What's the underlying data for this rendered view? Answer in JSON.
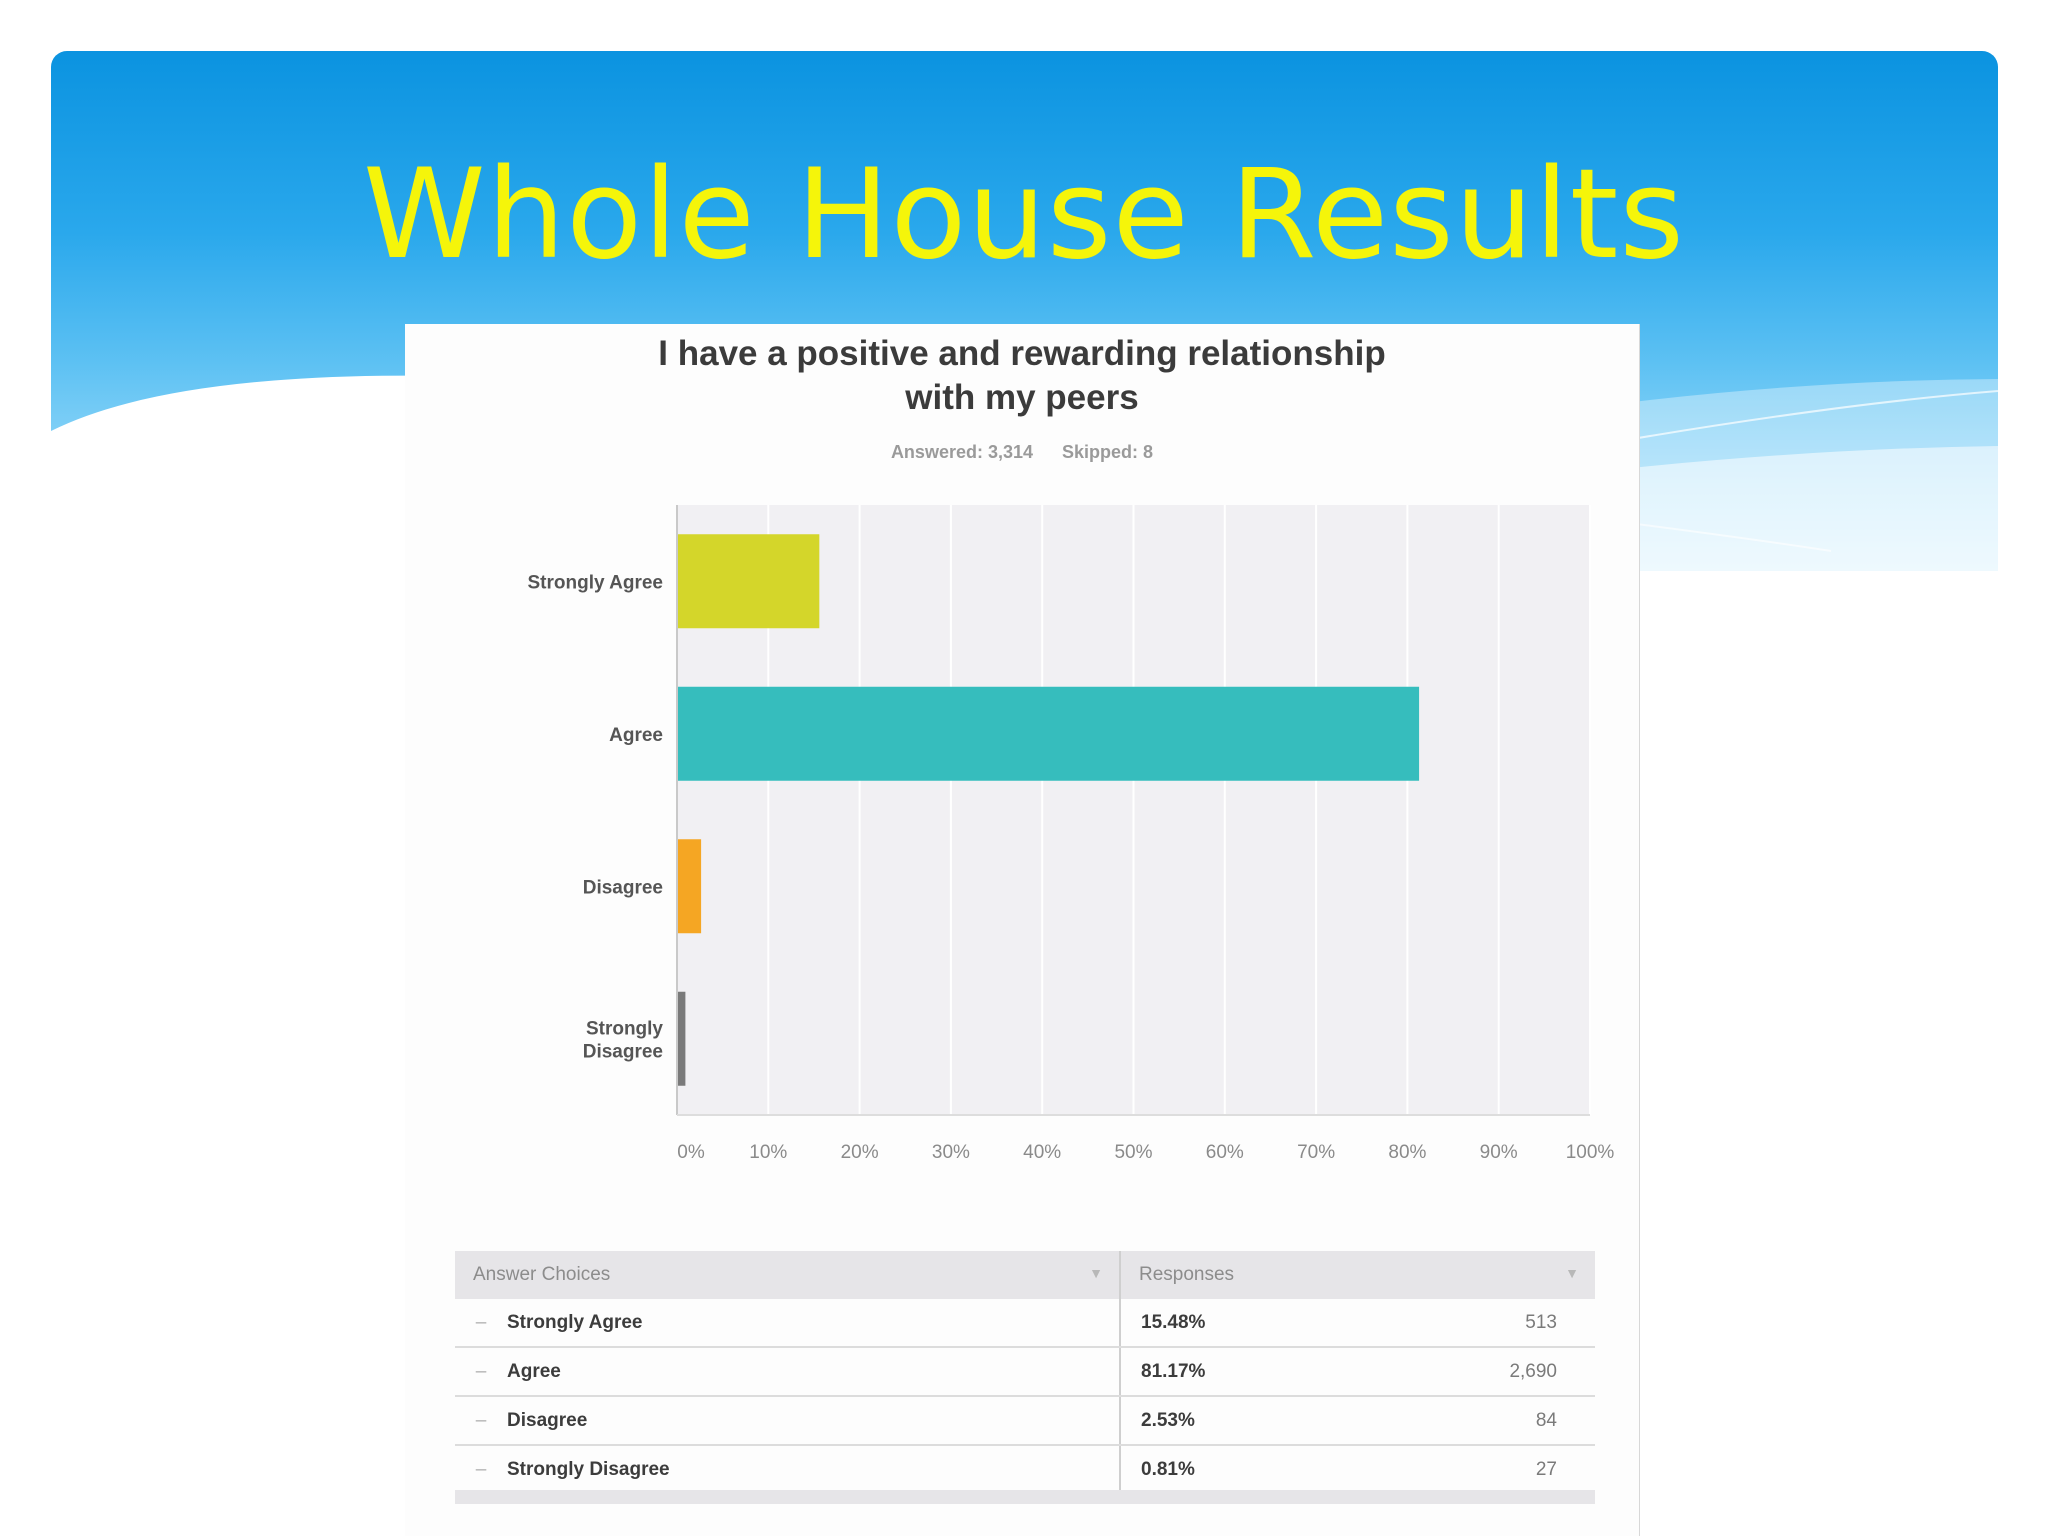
{
  "slide": {
    "title": "Whole House Results"
  },
  "chart_data": {
    "type": "bar",
    "orientation": "horizontal",
    "title": "I have a positive and rewarding relationship with my peers",
    "title_lines": [
      "I have a positive and rewarding relationship",
      "with my peers"
    ],
    "answered_text": "Answered: 3,314",
    "skipped_text": "Skipped: 8",
    "categories": [
      "Strongly Agree",
      "Agree",
      "Disagree",
      "Strongly Disagree"
    ],
    "category_lines": [
      [
        "Strongly Agree"
      ],
      [
        "Agree"
      ],
      [
        "Disagree"
      ],
      [
        "Strongly",
        "Disagree"
      ]
    ],
    "values": [
      15.48,
      81.17,
      2.53,
      0.81
    ],
    "colors": [
      "#d4d62a",
      "#36bdbd",
      "#f5a623",
      "#7a7a7a"
    ],
    "xlim": [
      0,
      100
    ],
    "x_ticks": [
      "0%",
      "10%",
      "20%",
      "30%",
      "40%",
      "50%",
      "60%",
      "70%",
      "80%",
      "90%",
      "100%"
    ],
    "grid": true,
    "plot_background": "#f1f0f3"
  },
  "table": {
    "headers": [
      "Answer Choices",
      "Responses"
    ],
    "rows": [
      {
        "choice": "Strongly Agree",
        "percent": "15.48%",
        "count": "513"
      },
      {
        "choice": "Agree",
        "percent": "81.17%",
        "count": "2,690"
      },
      {
        "choice": "Disagree",
        "percent": "2.53%",
        "count": "84"
      },
      {
        "choice": "Strongly Disagree",
        "percent": "0.81%",
        "count": "27"
      }
    ]
  }
}
